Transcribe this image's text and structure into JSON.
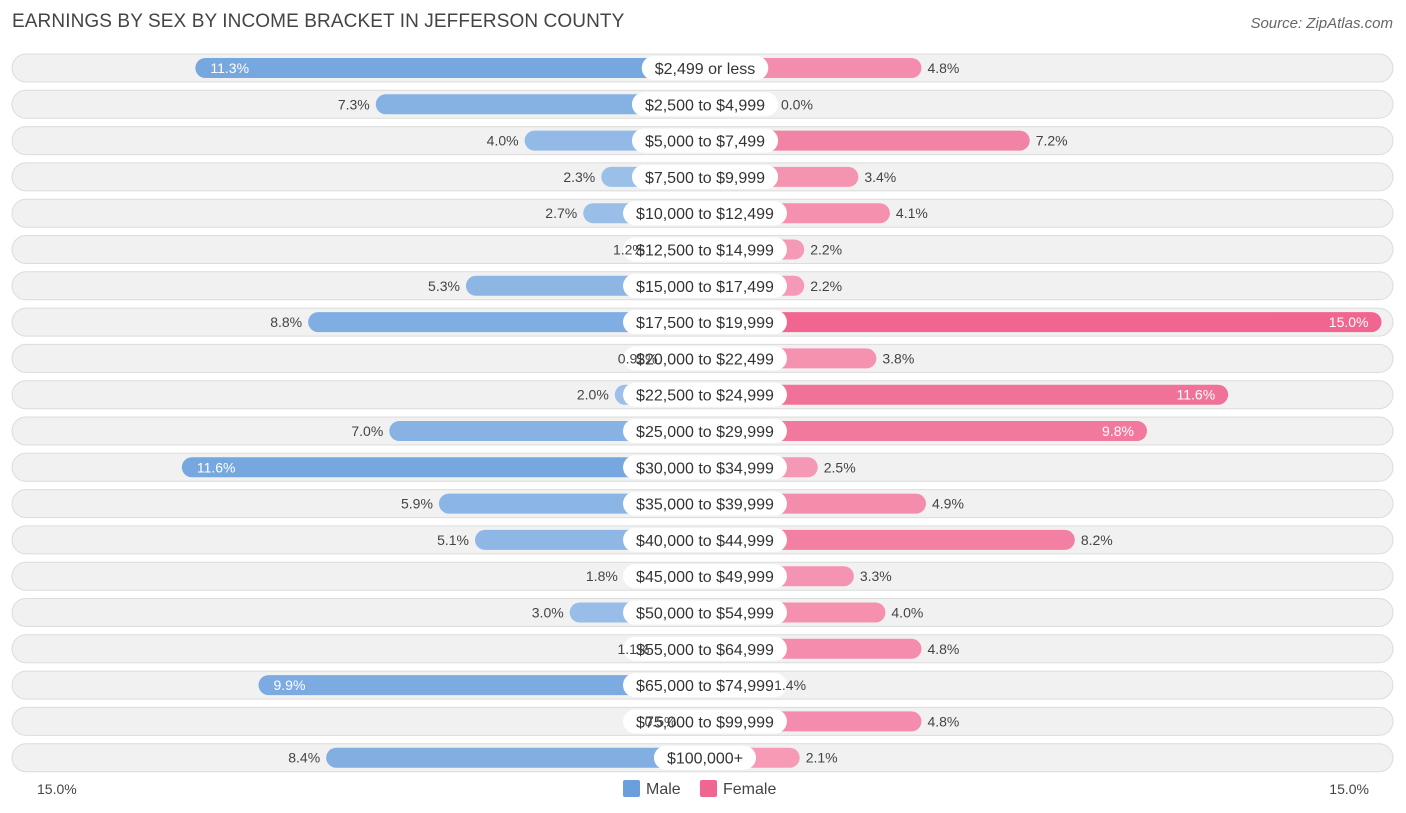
{
  "header": {
    "title": "EARNINGS BY SEX BY INCOME BRACKET IN JEFFERSON COUNTY",
    "source": "Source: ZipAtlas.com"
  },
  "colors": {
    "male_light": "#a8c8ec",
    "male_dark": "#6b9fdc",
    "female_light": "#f7a8c0",
    "female_dark": "#f06690"
  },
  "chart_data": {
    "type": "bar",
    "orientation": "horizontal-diverging",
    "title": "EARNINGS BY SEX BY INCOME BRACKET IN JEFFERSON COUNTY",
    "categories": [
      "$2,499 or less",
      "$2,500 to $4,999",
      "$5,000 to $7,499",
      "$7,500 to $9,999",
      "$10,000 to $12,499",
      "$12,500 to $14,999",
      "$15,000 to $17,499",
      "$17,500 to $19,999",
      "$20,000 to $22,499",
      "$22,500 to $24,999",
      "$25,000 to $29,999",
      "$30,000 to $34,999",
      "$35,000 to $39,999",
      "$40,000 to $44,999",
      "$45,000 to $49,999",
      "$50,000 to $54,999",
      "$55,000 to $64,999",
      "$65,000 to $74,999",
      "$75,000 to $99,999",
      "$100,000+"
    ],
    "series": [
      {
        "name": "Male",
        "values": [
          11.3,
          7.3,
          4.0,
          2.3,
          2.7,
          1.2,
          5.3,
          8.8,
          0.92,
          2.0,
          7.0,
          11.6,
          5.9,
          5.1,
          1.8,
          3.0,
          1.1,
          9.9,
          0.5,
          8.4
        ],
        "labels": [
          "11.3%",
          "7.3%",
          "4.0%",
          "2.3%",
          "2.7%",
          "1.2%",
          "5.3%",
          "8.8%",
          "0.92%",
          "2.0%",
          "7.0%",
          "11.6%",
          "5.9%",
          "5.1%",
          "1.8%",
          "3.0%",
          "1.1%",
          "9.9%",
          "0.5%",
          "8.4%"
        ]
      },
      {
        "name": "Female",
        "values": [
          4.8,
          0.0,
          7.2,
          3.4,
          4.1,
          2.2,
          2.2,
          15.0,
          3.8,
          11.6,
          9.8,
          2.5,
          4.9,
          8.2,
          3.3,
          4.0,
          4.8,
          1.4,
          4.8,
          2.1
        ],
        "labels": [
          "4.8%",
          "0.0%",
          "7.2%",
          "3.4%",
          "4.1%",
          "2.2%",
          "2.2%",
          "15.0%",
          "3.8%",
          "11.6%",
          "9.8%",
          "2.5%",
          "4.9%",
          "8.2%",
          "3.3%",
          "4.0%",
          "4.8%",
          "1.4%",
          "4.8%",
          "2.1%"
        ]
      }
    ],
    "xlim": [
      -15.0,
      15.0
    ],
    "axis_labels": {
      "left": "15.0%",
      "right": "15.0%"
    },
    "legend": {
      "position": "bottom-center",
      "items": [
        "Male",
        "Female"
      ]
    }
  }
}
